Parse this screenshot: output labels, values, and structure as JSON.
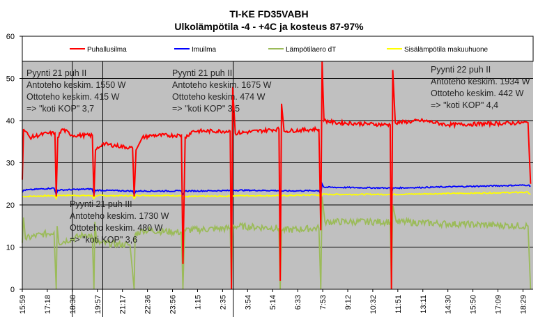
{
  "chart_data": {
    "type": "line",
    "title": "TI-KE FD35VABH",
    "subtitle": "Ulkolämpötila -4 - +4C ja kosteus 87-97%",
    "xlabel": "",
    "ylabel": "",
    "x_unit": "minutes since 15:59",
    "xlim": [
      0,
      1612
    ],
    "ylim": [
      0,
      60
    ],
    "yticks": [
      0,
      10,
      20,
      30,
      40,
      50,
      60
    ],
    "xtick_labels": [
      "15:59",
      "17:18",
      "18:38",
      "19:57",
      "21:17",
      "22:36",
      "23:56",
      "1:15",
      "2:35",
      "3:54",
      "5:14",
      "6:33",
      "7:53",
      "9:12",
      "10:32",
      "11:51",
      "13:11",
      "14:30",
      "15:50",
      "17:09",
      "18:29"
    ],
    "xtick_step_min": 79,
    "grid": true,
    "legend_position": "top",
    "separators_min": [
      158,
      254,
      666
    ],
    "series": [
      {
        "name": "Puhallusilma",
        "color": "#ff0000",
        "points": [
          [
            0,
            26
          ],
          [
            4,
            38
          ],
          [
            24,
            36
          ],
          [
            79,
            37
          ],
          [
            103,
            37
          ],
          [
            107,
            22
          ],
          [
            112,
            36
          ],
          [
            126,
            38
          ],
          [
            158,
            36.5
          ],
          [
            221,
            36.5
          ],
          [
            226,
            22
          ],
          [
            231,
            33
          ],
          [
            253,
            34.5
          ],
          [
            348,
            33.5
          ],
          [
            353,
            22
          ],
          [
            359,
            33
          ],
          [
            379,
            36
          ],
          [
            411,
            36.5
          ],
          [
            502,
            36.5
          ],
          [
            507,
            6
          ],
          [
            514,
            36
          ],
          [
            537,
            37.5
          ],
          [
            656,
            37.5
          ],
          [
            660,
            0
          ],
          [
            664,
            48
          ],
          [
            672,
            37
          ],
          [
            810,
            38
          ],
          [
            814,
            2
          ],
          [
            818,
            44
          ],
          [
            826,
            37.5
          ],
          [
            936,
            38
          ],
          [
            942,
            14
          ],
          [
            946,
            54
          ],
          [
            952,
            40
          ],
          [
            988,
            39.5
          ],
          [
            1161,
            39
          ],
          [
            1165,
            0
          ],
          [
            1169,
            52
          ],
          [
            1177,
            39.5
          ],
          [
            1264,
            40
          ],
          [
            1343,
            39
          ],
          [
            1596,
            39.5
          ],
          [
            1604,
            25
          ]
        ]
      },
      {
        "name": "Imuilma",
        "color": "#0000ff",
        "points": [
          [
            0,
            23
          ],
          [
            4,
            23.5
          ],
          [
            100,
            24
          ],
          [
            107,
            22.5
          ],
          [
            112,
            23.5
          ],
          [
            220,
            23.8
          ],
          [
            226,
            22.5
          ],
          [
            231,
            23.5
          ],
          [
            348,
            23.3
          ],
          [
            353,
            22.5
          ],
          [
            359,
            23.3
          ],
          [
            502,
            23.3
          ],
          [
            507,
            22.5
          ],
          [
            514,
            23.3
          ],
          [
            656,
            23.4
          ],
          [
            660,
            22.5
          ],
          [
            664,
            23.5
          ],
          [
            810,
            23.4
          ],
          [
            814,
            22.5
          ],
          [
            818,
            23.3
          ],
          [
            936,
            23.4
          ],
          [
            942,
            22.5
          ],
          [
            946,
            25
          ],
          [
            952,
            24.2
          ],
          [
            1161,
            24
          ],
          [
            1165,
            22.5
          ],
          [
            1169,
            24
          ],
          [
            1596,
            24.7
          ],
          [
            1604,
            24.5
          ]
        ]
      },
      {
        "name": "Lämpötilaero dT",
        "color": "#9bbb59",
        "points": [
          [
            0,
            11
          ],
          [
            4,
            17
          ],
          [
            10,
            12
          ],
          [
            60,
            13
          ],
          [
            100,
            13.5
          ],
          [
            107,
            0
          ],
          [
            110,
            15
          ],
          [
            115,
            11
          ],
          [
            200,
            13
          ],
          [
            221,
            12.5
          ],
          [
            226,
            0
          ],
          [
            229,
            16
          ],
          [
            235,
            11
          ],
          [
            340,
            10.5
          ],
          [
            353,
            0
          ],
          [
            356,
            13
          ],
          [
            380,
            14
          ],
          [
            502,
            13.5
          ],
          [
            507,
            0
          ],
          [
            512,
            14
          ],
          [
            656,
            14.5
          ],
          [
            660,
            0
          ],
          [
            664,
            15
          ],
          [
            810,
            14.5
          ],
          [
            814,
            0
          ],
          [
            818,
            14
          ],
          [
            936,
            14.5
          ],
          [
            942,
            0
          ],
          [
            946,
            22
          ],
          [
            955,
            16
          ],
          [
            1161,
            16
          ],
          [
            1165,
            0
          ],
          [
            1169,
            20
          ],
          [
            1180,
            16
          ],
          [
            1350,
            15.5
          ],
          [
            1596,
            15
          ],
          [
            1604,
            0
          ]
        ]
      },
      {
        "name": "Sisälämpötila makuuhuone",
        "color": "#ffff00",
        "points": [
          [
            0,
            22
          ],
          [
            103,
            22.2
          ],
          [
            107,
            21.5
          ],
          [
            112,
            22.3
          ],
          [
            221,
            22.2
          ],
          [
            226,
            21.5
          ],
          [
            231,
            22.2
          ],
          [
            348,
            22.2
          ],
          [
            353,
            21.5
          ],
          [
            359,
            22.3
          ],
          [
            502,
            22.2
          ],
          [
            507,
            21.5
          ],
          [
            514,
            22
          ],
          [
            656,
            22.1
          ],
          [
            660,
            21.5
          ],
          [
            664,
            22.2
          ],
          [
            810,
            22.2
          ],
          [
            814,
            21.5
          ],
          [
            818,
            22.2
          ],
          [
            936,
            22.4
          ],
          [
            942,
            21.5
          ],
          [
            946,
            22.5
          ],
          [
            1161,
            22.5
          ],
          [
            1165,
            21.5
          ],
          [
            1169,
            22.5
          ],
          [
            1596,
            23
          ],
          [
            1604,
            22.5
          ]
        ]
      }
    ],
    "annotations": [
      {
        "id": "a1",
        "lines": [
          "Pyynti 21 puh II",
          "Antoteho keskim. 1550 W",
          "Ottoteho keskim. 415 W",
          "=> \"koti KOP\" 3,7"
        ]
      },
      {
        "id": "a2",
        "lines": [
          "Pyynti 21 puh II",
          "Antoteho keskim. 1675 W",
          "Ottoteho keskim. 474 W",
          "=> \"koti KOP\" 3,5"
        ]
      },
      {
        "id": "a3",
        "lines": [
          "Pyynti 22 puh II",
          "Antoteho keskim. 1934 W",
          "Ottoteho keskim. 442 W",
          "=> \"koti KOP\" 4,4"
        ]
      },
      {
        "id": "a4",
        "lines": [
          "Pyynti 21 puh III",
          "Antoteho keskim. 1730 W",
          "Ottoteho keskim. 480 W",
          "=> \"koti KOP\" 3,6"
        ]
      }
    ]
  }
}
